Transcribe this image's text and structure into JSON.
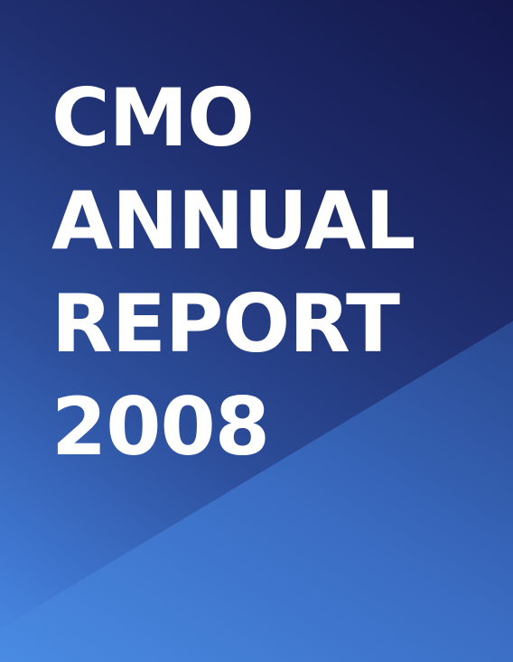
{
  "cover": {
    "title_lines": [
      "CMO",
      "ANNUAL",
      "REPORT",
      "2008"
    ]
  },
  "colors": {
    "background_dark": "#13174a",
    "background_light": "#4a8ce6",
    "title_text": "#ffffff"
  }
}
